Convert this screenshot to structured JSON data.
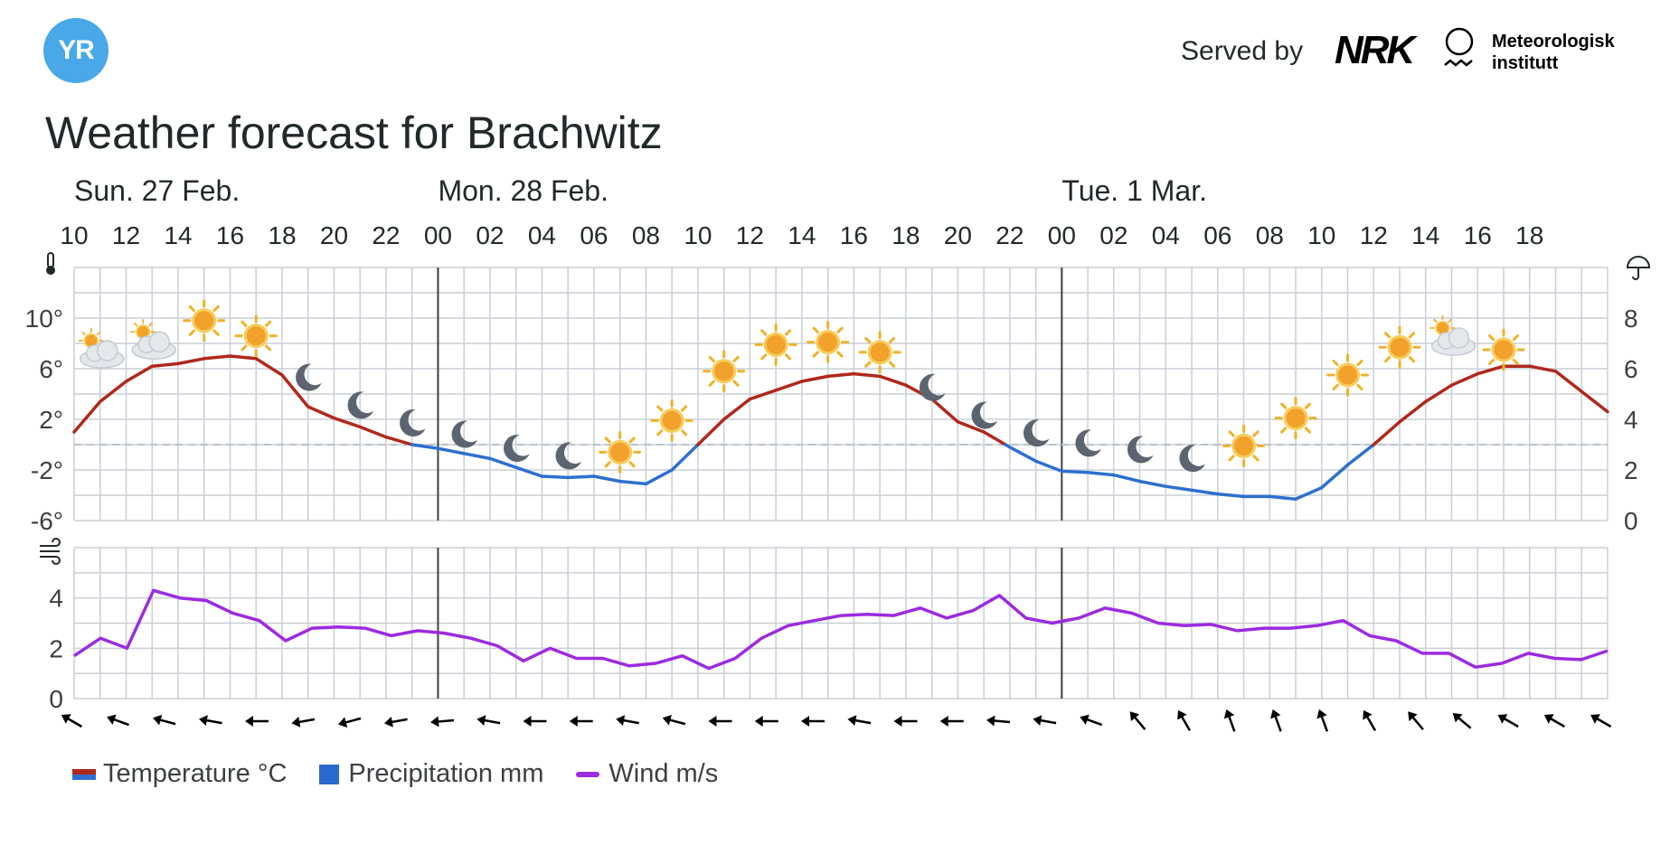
{
  "header": {
    "logo_text": "YR",
    "served_by": "Served by",
    "nrk": "NRK",
    "met_line1": "Meteorologisk",
    "met_line2": "institutt"
  },
  "title": "Weather forecast for Brachwitz",
  "colors": {
    "temp_warm": "#b0281c",
    "temp_cold": "#2e6fd0",
    "precipitation": "#2a6ad0",
    "wind": "#9b2be0",
    "grid": "#c9cfd6",
    "logo": "#48a8e8"
  },
  "chart_data": {
    "type": "line",
    "days": [
      {
        "label": "Sun. 27 Feb.",
        "start_hour_index": 0
      },
      {
        "label": "Mon. 28 Feb.",
        "start_hour_index": 14
      },
      {
        "label": "Tue. 1 Mar.",
        "start_hour_index": 38
      }
    ],
    "hour_ticks": [
      "10",
      "12",
      "14",
      "16",
      "18",
      "20",
      "22",
      "00",
      "02",
      "04",
      "06",
      "08",
      "10",
      "12",
      "14",
      "16",
      "18",
      "20",
      "22",
      "00",
      "02",
      "04",
      "06",
      "08",
      "10",
      "12",
      "14",
      "16",
      "18"
    ],
    "temperature": {
      "unit": "°C",
      "y_ticks": [
        "10°",
        "6°",
        "2°",
        "-2°",
        "-6°"
      ],
      "ylim": [
        -6,
        14
      ],
      "values": [
        1,
        3.4,
        5,
        6.2,
        6.4,
        6.8,
        7,
        6.8,
        5.5,
        3,
        2.1,
        1.4,
        0.6,
        0,
        -0.3,
        -0.7,
        -1.1,
        -1.8,
        -2.5,
        -2.6,
        -2.5,
        -2.9,
        -3.1,
        -2,
        0,
        2,
        3.6,
        4.3,
        5,
        5.4,
        5.6,
        5.4,
        4.7,
        3.6,
        1.8,
        1,
        -0.2,
        -1.3,
        -2.1,
        -2.2,
        -2.4,
        -2.9,
        -3.3,
        -3.6,
        -3.9,
        -4.1,
        -4.1,
        -4.3,
        -3.4,
        -1.6,
        0,
        1.8,
        3.4,
        4.7,
        5.6,
        6.2,
        6.2,
        5.8,
        4.2,
        2.6
      ]
    },
    "precipitation": {
      "unit": "mm",
      "y_ticks": [
        "8",
        "6",
        "4",
        "2",
        "0"
      ],
      "ylim": [
        0,
        10
      ],
      "values": []
    },
    "wind": {
      "unit": "m/s",
      "y_ticks": [
        "4",
        "2",
        "0"
      ],
      "ylim": [
        0,
        6
      ],
      "values": [
        1.7,
        2.4,
        2,
        4.3,
        4,
        3.9,
        3.4,
        3.1,
        2.3,
        2.8,
        2.85,
        2.8,
        2.5,
        2.7,
        2.6,
        2.4,
        2.1,
        1.5,
        2,
        1.6,
        1.6,
        1.3,
        1.4,
        1.7,
        1.2,
        1.6,
        2.4,
        2.9,
        3.1,
        3.3,
        3.35,
        3.3,
        3.6,
        3.2,
        3.5,
        4.1,
        3.2,
        3,
        3.2,
        3.6,
        3.4,
        3,
        2.9,
        2.95,
        2.7,
        2.8,
        2.8,
        2.9,
        3.1,
        2.5,
        2.3,
        1.8,
        1.8,
        1.25,
        1.4,
        1.8,
        1.6,
        1.55,
        1.9
      ]
    },
    "wind_direction_deg": [
      300,
      290,
      285,
      280,
      270,
      260,
      255,
      260,
      265,
      280,
      270,
      270,
      280,
      285,
      270,
      270,
      270,
      280,
      270,
      270,
      275,
      280,
      290,
      320,
      330,
      340,
      340,
      340,
      330,
      320,
      310,
      300,
      300,
      300
    ],
    "symbols": [
      {
        "hour_index": 1,
        "icon": "partly-cloudy-sun-icon",
        "temp": 7.5
      },
      {
        "hour_index": 3,
        "icon": "partly-cloudy-sun-icon",
        "temp": 8.2
      },
      {
        "hour_index": 5,
        "icon": "sun-icon",
        "temp": 9.8
      },
      {
        "hour_index": 7,
        "icon": "sun-icon",
        "temp": 8.6
      },
      {
        "hour_index": 9,
        "icon": "moon-icon",
        "temp": 5.3
      },
      {
        "hour_index": 11,
        "icon": "moon-icon",
        "temp": 3.1
      },
      {
        "hour_index": 13,
        "icon": "moon-icon",
        "temp": 1.7
      },
      {
        "hour_index": 15,
        "icon": "moon-icon",
        "temp": 0.8
      },
      {
        "hour_index": 17,
        "icon": "moon-icon",
        "temp": -0.3
      },
      {
        "hour_index": 19,
        "icon": "moon-icon",
        "temp": -0.9
      },
      {
        "hour_index": 21,
        "icon": "sun-icon",
        "temp": -0.6
      },
      {
        "hour_index": 23,
        "icon": "sun-icon",
        "temp": 1.9
      },
      {
        "hour_index": 25,
        "icon": "sun-icon",
        "temp": 5.8
      },
      {
        "hour_index": 27,
        "icon": "sun-icon",
        "temp": 7.9
      },
      {
        "hour_index": 29,
        "icon": "sun-icon",
        "temp": 8.1
      },
      {
        "hour_index": 31,
        "icon": "sun-icon",
        "temp": 7.3
      },
      {
        "hour_index": 33,
        "icon": "moon-icon",
        "temp": 4.5
      },
      {
        "hour_index": 35,
        "icon": "moon-icon",
        "temp": 2.3
      },
      {
        "hour_index": 37,
        "icon": "moon-icon",
        "temp": 0.9
      },
      {
        "hour_index": 39,
        "icon": "moon-icon",
        "temp": 0.1
      },
      {
        "hour_index": 41,
        "icon": "moon-icon",
        "temp": -0.4
      },
      {
        "hour_index": 43,
        "icon": "moon-icon",
        "temp": -1.1
      },
      {
        "hour_index": 45,
        "icon": "sun-icon",
        "temp": -0.1
      },
      {
        "hour_index": 47,
        "icon": "sun-icon",
        "temp": 2.1
      },
      {
        "hour_index": 49,
        "icon": "sun-icon",
        "temp": 5.5
      },
      {
        "hour_index": 51,
        "icon": "sun-icon",
        "temp": 7.7
      },
      {
        "hour_index": 53,
        "icon": "partly-cloudy-sun-icon",
        "temp": 8.5
      },
      {
        "hour_index": 55,
        "icon": "sun-icon",
        "temp": 7.5
      }
    ],
    "legend": [
      {
        "label": "Temperature °C",
        "key": "temperature"
      },
      {
        "label": "Precipitation mm",
        "key": "precipitation"
      },
      {
        "label": "Wind m/s",
        "key": "wind"
      }
    ]
  }
}
